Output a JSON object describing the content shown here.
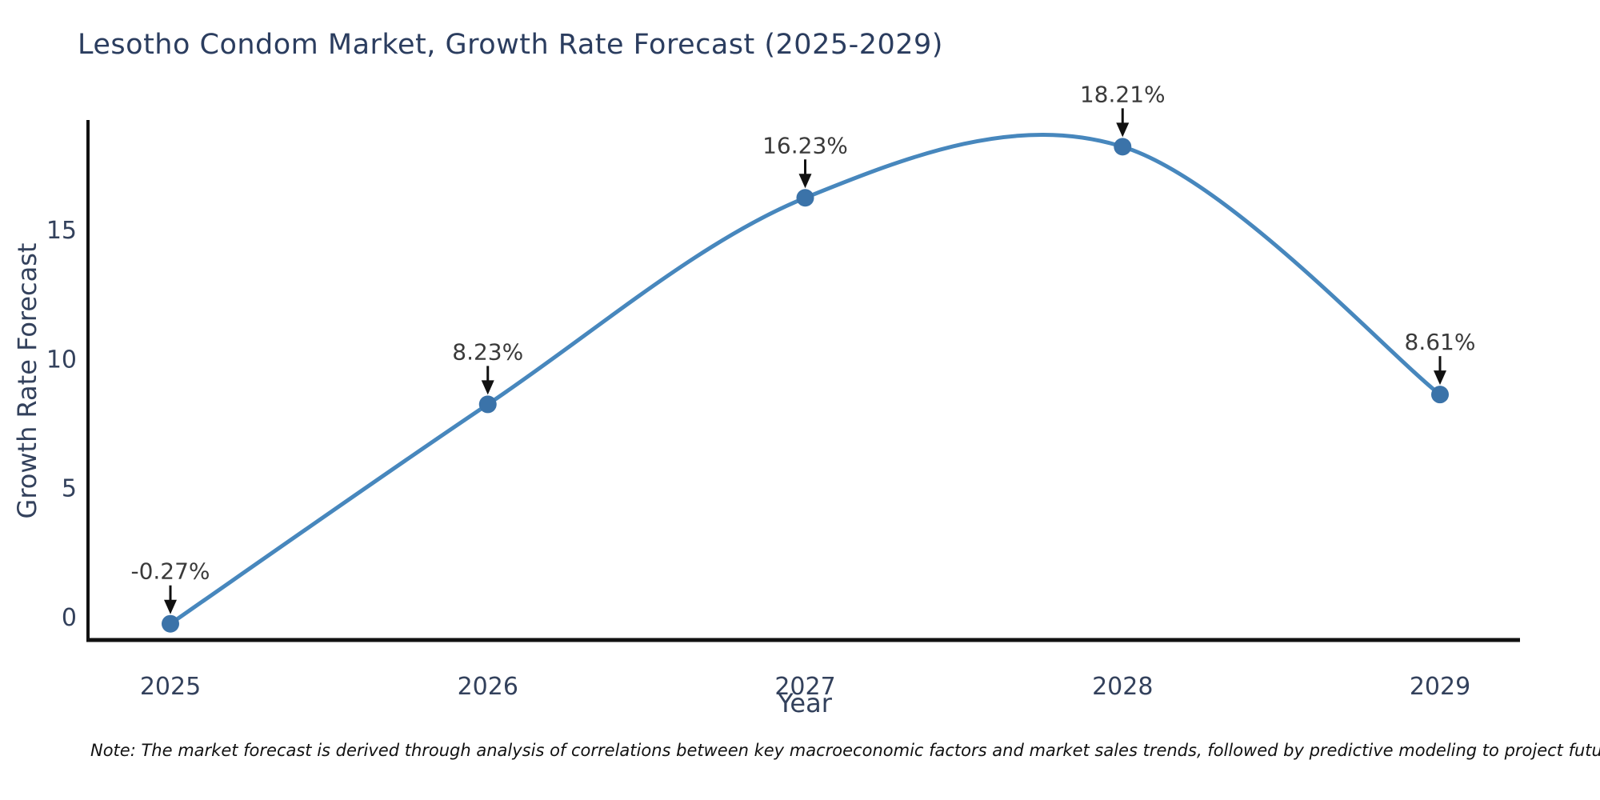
{
  "note": "Note: The market forecast is derived through analysis of correlations between key macroeconomic factors and market sales trends, followed by predictive modeling to project future sales",
  "chart_data": {
    "type": "line",
    "title": "Lesotho Condom Market, Growth Rate Forecast (2025-2029)",
    "xlabel": "Year",
    "ylabel": "Growth Rate Forecast",
    "x": [
      2025,
      2026,
      2027,
      2028,
      2029
    ],
    "values": [
      -0.27,
      8.23,
      16.23,
      18.21,
      8.61
    ],
    "point_labels": [
      "-0.27%",
      "8.23%",
      "16.23%",
      "18.21%",
      "8.61%"
    ],
    "yticks": [
      0,
      5,
      10,
      15
    ],
    "xlim": [
      2024.74,
      2029.25
    ],
    "ylim": [
      -0.9,
      19.2
    ],
    "grid": false,
    "legend": "none",
    "line_shape": "spline",
    "colors": {
      "line": "#4787bd",
      "marker": "#3b73a9",
      "axis": "#111111",
      "title_text": "#2b3d5f",
      "tick_text": "#33415c",
      "annotation_text": "#3a3a3a",
      "arrow": "#111111",
      "background": "#ffffff"
    }
  }
}
